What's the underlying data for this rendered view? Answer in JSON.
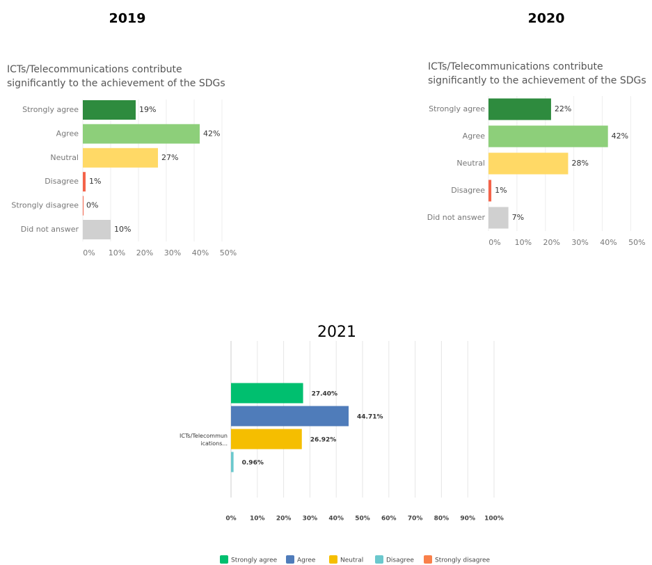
{
  "chart_data": [
    {
      "type": "bar",
      "heading": "2019",
      "title": [
        "ICTs/Telecommunications contribute",
        "significantly to the achievement of the SDGs"
      ],
      "categories": [
        "Strongly agree",
        "Agree",
        "Neutral",
        "Disagree",
        "Strongly disagree",
        "Did not answer"
      ],
      "values": [
        19,
        42,
        27,
        1,
        0,
        10
      ],
      "value_labels": [
        "19%",
        "42%",
        "27%",
        "1%",
        "0%",
        "10%"
      ],
      "colors": [
        "#2e8b3e",
        "#8dcf7a",
        "#ffd966",
        "#f4634a",
        "#f4634a",
        "#d0d0d0"
      ],
      "xlim": [
        0,
        59
      ],
      "xticks": [
        {
          "value": 0,
          "label": "0%"
        },
        {
          "value": 10,
          "label": "10%"
        },
        {
          "value": 20,
          "label": "20%"
        },
        {
          "value": 30,
          "label": "30%"
        },
        {
          "value": 40,
          "label": "40%"
        },
        {
          "value": 50,
          "label": "50%"
        }
      ],
      "grid": true
    },
    {
      "type": "bar",
      "heading": "2020",
      "title": [
        "ICTs/Telecommunications contribute",
        "significantly to the achievement of the SDGs"
      ],
      "categories": [
        "Strongly agree",
        "Agree",
        "Neutral",
        "Disagree",
        "Did not answer"
      ],
      "values": [
        22,
        42,
        28,
        1,
        7
      ],
      "value_labels": [
        "22%",
        "42%",
        "28%",
        "1%",
        "7%"
      ],
      "colors": [
        "#2e8b3e",
        "#8dcf7a",
        "#ffd966",
        "#f4634a",
        "#d0d0d0"
      ],
      "xlim": [
        0,
        57
      ],
      "xticks": [
        {
          "value": 0,
          "label": "0%"
        },
        {
          "value": 10,
          "label": "10%"
        },
        {
          "value": 20,
          "label": "20%"
        },
        {
          "value": 30,
          "label": "30%"
        },
        {
          "value": 40,
          "label": "40%"
        },
        {
          "value": 50,
          "label": "50%"
        }
      ],
      "grid": true
    },
    {
      "type": "grouped-bar",
      "heading": "2021",
      "categories": [
        "ICTs/Telecommunications..."
      ],
      "series": [
        {
          "name": "Strongly agree",
          "color": "#00bf6f",
          "values": [
            27.4
          ],
          "value_labels": [
            "27.40%"
          ]
        },
        {
          "name": "Agree",
          "color": "#4f7cba",
          "values": [
            44.71
          ],
          "value_labels": [
            "44.71%"
          ]
        },
        {
          "name": "Neutral",
          "color": "#f5be00",
          "values": [
            26.92
          ],
          "value_labels": [
            "26.92%"
          ]
        },
        {
          "name": "Disagree",
          "color": "#6bc8cd",
          "values": [
            0.96
          ],
          "value_labels": [
            "0.96%"
          ]
        },
        {
          "name": "Strongly disagree",
          "color": "#f9804a",
          "values": [
            0
          ],
          "value_labels": [
            null
          ]
        }
      ],
      "xlim": [
        0,
        100
      ],
      "xticks": [
        {
          "value": 0,
          "label": "0%"
        },
        {
          "value": 10,
          "label": "10%"
        },
        {
          "value": 20,
          "label": "20%"
        },
        {
          "value": 30,
          "label": "30%"
        },
        {
          "value": 40,
          "label": "40%"
        },
        {
          "value": 50,
          "label": "50%"
        },
        {
          "value": 60,
          "label": "60%"
        },
        {
          "value": 70,
          "label": "70%"
        },
        {
          "value": 80,
          "label": "80%"
        },
        {
          "value": 90,
          "label": "90%"
        },
        {
          "value": 100,
          "label": "100%"
        }
      ],
      "grid": true,
      "legend": "bottom"
    }
  ]
}
